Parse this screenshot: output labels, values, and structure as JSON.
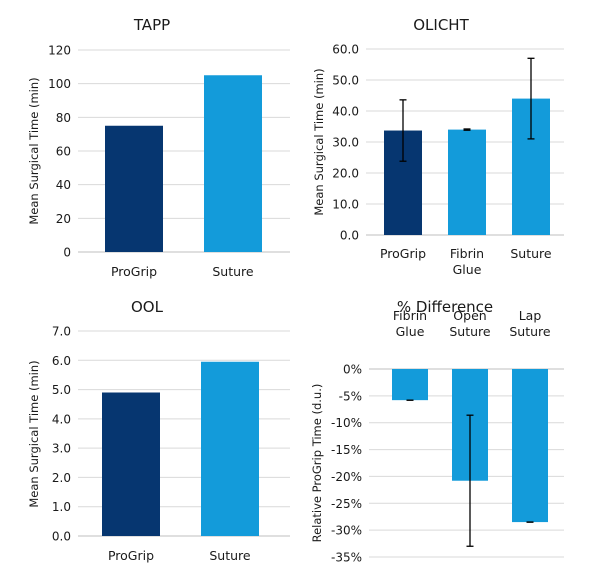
{
  "colors": {
    "dark": "#063670",
    "light": "#139BDA"
  },
  "chart_data": [
    {
      "type": "bar",
      "title": "TAPP",
      "ylabel": "Mean Surgical Time (min)",
      "ylim": [
        0,
        120
      ],
      "yticks": [
        "0",
        "20",
        "40",
        "60",
        "80",
        "100",
        "120"
      ],
      "categories": [
        "ProGrip",
        "Suture"
      ],
      "values": [
        75,
        105
      ],
      "bar_colors": [
        "dark",
        "light"
      ]
    },
    {
      "type": "bar",
      "title": "OLICHT",
      "ylabel": "Mean Surgical Time (min)",
      "ylim": [
        0,
        60
      ],
      "yticks": [
        "0.0",
        "10.0",
        "20.0",
        "30.0",
        "40.0",
        "50.0",
        "60.0"
      ],
      "categories": [
        [
          "ProGrip"
        ],
        [
          "Fibrin",
          "Glue"
        ],
        [
          "Suture"
        ]
      ],
      "values": [
        33.7,
        34.0,
        44.0
      ],
      "errors": [
        [
          23.8,
          43.6
        ],
        [
          33.8,
          34.2
        ],
        [
          31.0,
          57.0
        ]
      ],
      "bar_colors": [
        "dark",
        "light",
        "light"
      ]
    },
    {
      "type": "bar",
      "title": "OOL",
      "ylabel": "Mean Surgical Time (min)",
      "ylim": [
        0,
        7
      ],
      "yticks": [
        "0.0",
        "1.0",
        "2.0",
        "3.0",
        "4.0",
        "5.0",
        "6.0",
        "7.0"
      ],
      "categories": [
        "ProGrip",
        "Suture"
      ],
      "values": [
        4.9,
        5.95
      ],
      "bar_colors": [
        "dark",
        "light"
      ]
    },
    {
      "type": "bar",
      "title": "% Difference",
      "ylabel": "Relative ProGrip Time (d.u.)",
      "ylim": [
        -35,
        0
      ],
      "yticks": [
        "-35%",
        "-30%",
        "-25%",
        "-20%",
        "-15%",
        "-10%",
        "-5%",
        "0%"
      ],
      "categories": [
        [
          "Fibrin",
          "Glue"
        ],
        [
          "Open",
          "Suture"
        ],
        [
          "Lap",
          "Suture"
        ]
      ],
      "values": [
        -5.8,
        -20.8,
        -28.5
      ],
      "errors": [
        [
          -5.8,
          -5.8
        ],
        [
          -33.0,
          -8.6
        ],
        [
          -28.5,
          -28.5
        ]
      ],
      "bar_colors": [
        "light",
        "light",
        "light"
      ]
    }
  ]
}
